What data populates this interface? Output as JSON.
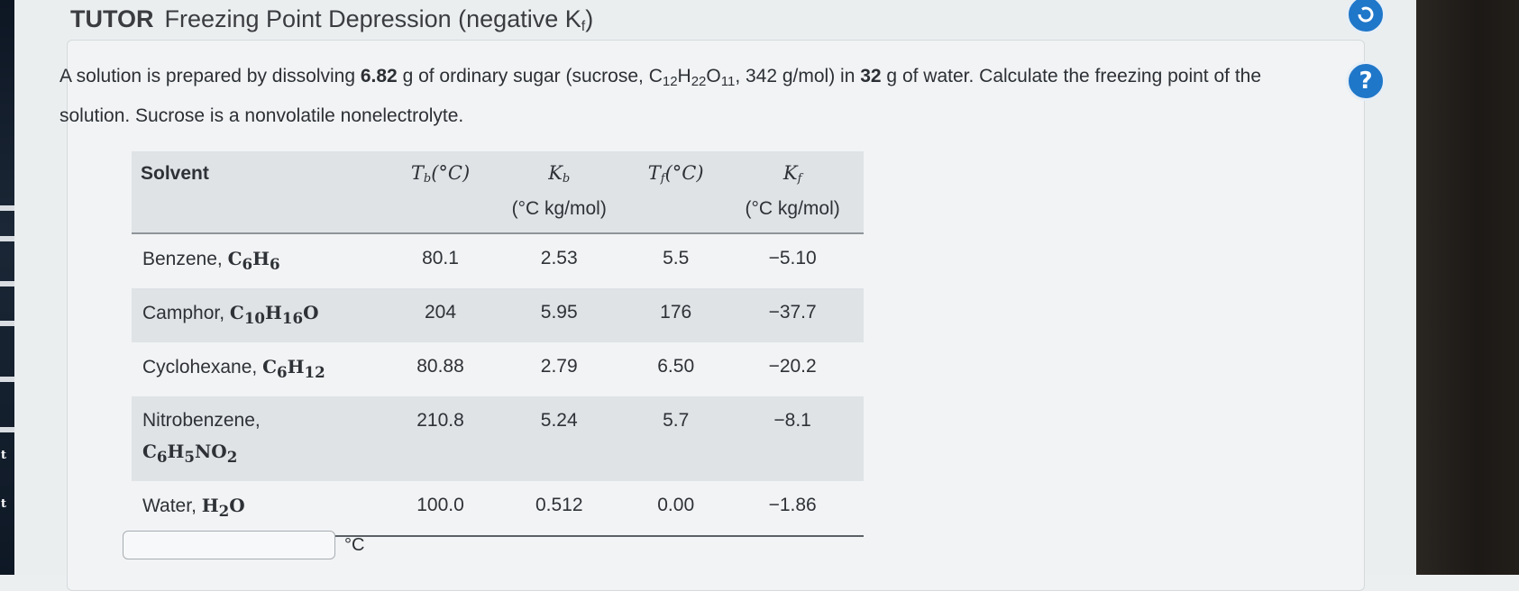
{
  "title": {
    "prefix": "TUTOR",
    "main": "Freezing Point Depression (negative K",
    "sub": "f",
    "close": ")"
  },
  "problem": {
    "t1": "A solution is prepared by dissolving ",
    "mass_sugar": "6.82",
    "t2": " g of ordinary sugar (sucrose, C",
    "s1": "12",
    "t3": "H",
    "s2": "22",
    "t4": "O",
    "s3": "11",
    "t5": ", 342 g/mol) in ",
    "mass_water": "32",
    "t6": " g of water. Calculate the freezing point of the solution. Sucrose is a nonvolatile nonelectrolyte."
  },
  "table": {
    "headers": {
      "solvent": "Solvent",
      "tb_sym": "T",
      "tb_sub": "b",
      "tb_unit": "(°C)",
      "kb_sym": "K",
      "kb_sub": "b",
      "kb_unit": "(°C kg/mol)",
      "tf_sym": "T",
      "tf_sub": "f",
      "tf_unit": "(°C)",
      "kf_sym": "K",
      "kf_sub": "f",
      "kf_unit": "(°C kg/mol)"
    },
    "rows": [
      {
        "name": "Benzene, ",
        "formula": [
          "C",
          "6",
          "H",
          "6"
        ],
        "tb": "80.1",
        "kb": "2.53",
        "tf": "5.5",
        "kf": "−5.10"
      },
      {
        "name": "Camphor, ",
        "formula": [
          "C",
          "10",
          "H",
          "16",
          "O"
        ],
        "tb": "204",
        "kb": "5.95",
        "tf": "176",
        "kf": "−37.7"
      },
      {
        "name": "Cyclohexane, ",
        "formula": [
          "C",
          "6",
          "H",
          "12"
        ],
        "tb": "80.88",
        "kb": "2.79",
        "tf": "6.50",
        "kf": "−20.2"
      },
      {
        "name": "Nitrobenzene,",
        "formula": [
          "C",
          "6",
          "H",
          "5",
          "NO",
          "2"
        ],
        "tb": "210.8",
        "kb": "5.24",
        "tf": "5.7",
        "kf": "−8.1"
      },
      {
        "name": "Water, ",
        "formula": [
          "H",
          "2",
          "O"
        ],
        "tb": "100.0",
        "kb": "0.512",
        "tf": "0.00",
        "kf": "−1.86"
      }
    ]
  },
  "answer": {
    "value": "",
    "unit": "°C"
  },
  "sidebar": {
    "top_icon": "refresh-icon",
    "help_label": "?"
  },
  "colors": {
    "accent": "#1f77c9",
    "row_shade": "#dfe3e6"
  }
}
